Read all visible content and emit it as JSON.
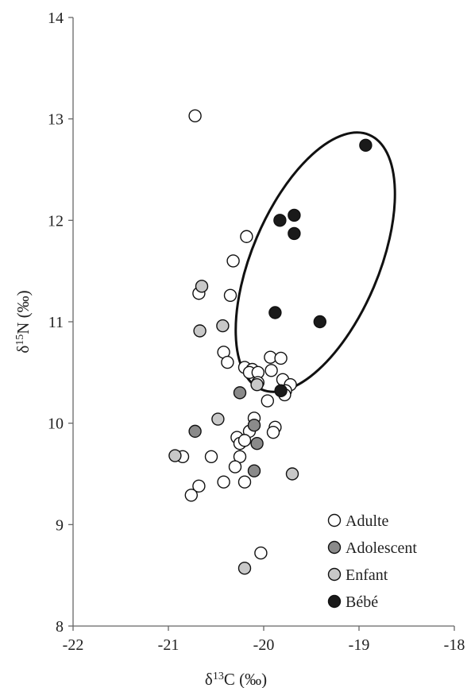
{
  "chart_data": {
    "type": "scatter",
    "xlabel": {
      "prefix": "δ",
      "sup": "13",
      "suffix": "C (‰)"
    },
    "ylabel": {
      "prefix": "δ",
      "sup": "15",
      "suffix": "N (‰)"
    },
    "xlim": [
      -22,
      -18
    ],
    "ylim": [
      8,
      14
    ],
    "xticks": [
      "-22",
      "-21",
      "-20",
      "-19",
      "-18"
    ],
    "yticks": [
      "8",
      "9",
      "10",
      "11",
      "12",
      "13",
      "14"
    ],
    "grid": false,
    "legend_position": "bottom-right",
    "series": [
      {
        "name": "Adulte",
        "fill": "#ffffff",
        "points": [
          [
            -20.72,
            13.03
          ],
          [
            -20.18,
            11.84
          ],
          [
            -20.32,
            11.6
          ],
          [
            -20.68,
            11.28
          ],
          [
            -20.35,
            11.26
          ],
          [
            -20.42,
            10.7
          ],
          [
            -20.38,
            10.6
          ],
          [
            -20.2,
            10.55
          ],
          [
            -20.12,
            10.53
          ],
          [
            -20.15,
            10.5
          ],
          [
            -20.06,
            10.5
          ],
          [
            -20.06,
            10.4
          ],
          [
            -19.93,
            10.65
          ],
          [
            -19.82,
            10.64
          ],
          [
            -19.92,
            10.52
          ],
          [
            -19.8,
            10.43
          ],
          [
            -19.72,
            10.38
          ],
          [
            -19.77,
            10.32
          ],
          [
            -19.78,
            10.28
          ],
          [
            -19.96,
            10.22
          ],
          [
            -20.1,
            10.05
          ],
          [
            -20.15,
            9.92
          ],
          [
            -20.28,
            9.86
          ],
          [
            -20.25,
            9.8
          ],
          [
            -20.2,
            9.83
          ],
          [
            -19.88,
            9.96
          ],
          [
            -19.9,
            9.91
          ],
          [
            -20.25,
            9.67
          ],
          [
            -20.3,
            9.57
          ],
          [
            -20.55,
            9.67
          ],
          [
            -20.85,
            9.67
          ],
          [
            -20.68,
            9.38
          ],
          [
            -20.76,
            9.29
          ],
          [
            -20.42,
            9.42
          ],
          [
            -20.2,
            9.42
          ],
          [
            -20.03,
            8.72
          ]
        ]
      },
      {
        "name": "Adolescent",
        "fill": "#8a8a8a",
        "points": [
          [
            -20.25,
            10.3
          ],
          [
            -20.72,
            9.92
          ],
          [
            -20.1,
            9.98
          ],
          [
            -20.07,
            9.8
          ],
          [
            -20.1,
            9.53
          ]
        ]
      },
      {
        "name": "Enfant",
        "fill": "#c8c8c8",
        "points": [
          [
            -20.65,
            11.35
          ],
          [
            -20.67,
            10.91
          ],
          [
            -20.43,
            10.96
          ],
          [
            -20.07,
            10.38
          ],
          [
            -20.48,
            10.04
          ],
          [
            -20.93,
            9.68
          ],
          [
            -19.7,
            9.5
          ],
          [
            -20.2,
            8.57
          ]
        ]
      },
      {
        "name": "Bébé",
        "fill": "#1a1a1a",
        "points": [
          [
            -18.93,
            12.74
          ],
          [
            -19.68,
            12.05
          ],
          [
            -19.83,
            12.0
          ],
          [
            -19.68,
            11.87
          ],
          [
            -19.88,
            11.09
          ],
          [
            -19.41,
            11.0
          ],
          [
            -19.82,
            10.32
          ]
        ]
      }
    ]
  }
}
